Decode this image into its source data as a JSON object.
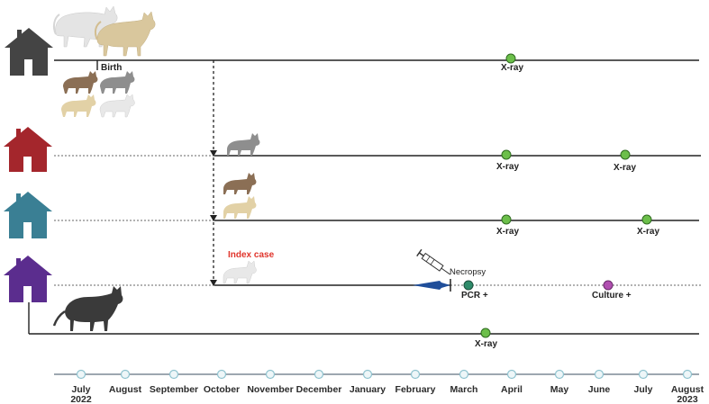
{
  "labels": {
    "birth": "Birth",
    "index_case": "Index case",
    "necropsy": "Necropsy",
    "pcr": "PCR +",
    "culture": "Culture +",
    "xray": "X-ray"
  },
  "months": [
    {
      "l1": "July",
      "l2": "2022"
    },
    {
      "l1": "August",
      "l2": ""
    },
    {
      "l1": "September",
      "l2": ""
    },
    {
      "l1": "October",
      "l2": ""
    },
    {
      "l1": "November",
      "l2": ""
    },
    {
      "l1": "December",
      "l2": ""
    },
    {
      "l1": "January",
      "l2": ""
    },
    {
      "l1": "February",
      "l2": ""
    },
    {
      "l1": "March",
      "l2": ""
    },
    {
      "l1": "April",
      "l2": ""
    },
    {
      "l1": "May",
      "l2": ""
    },
    {
      "l1": "June",
      "l2": ""
    },
    {
      "l1": "July",
      "l2": ""
    },
    {
      "l1": "August",
      "l2": "2023"
    }
  ],
  "colors": {
    "house_1": "#444444",
    "house_2": "#a4262c",
    "house_3": "#3a7f94",
    "house_4": "#5b2d8e",
    "xray_dot": "#6cbf4a",
    "pcr_dot": "#2e8b6a",
    "culture_dot": "#b04fb0",
    "index_text": "#e0342b",
    "syringe_arrow": "#1f4e9a"
  },
  "icons": [
    "house-icon",
    "cat-icon",
    "syringe-icon"
  ]
}
